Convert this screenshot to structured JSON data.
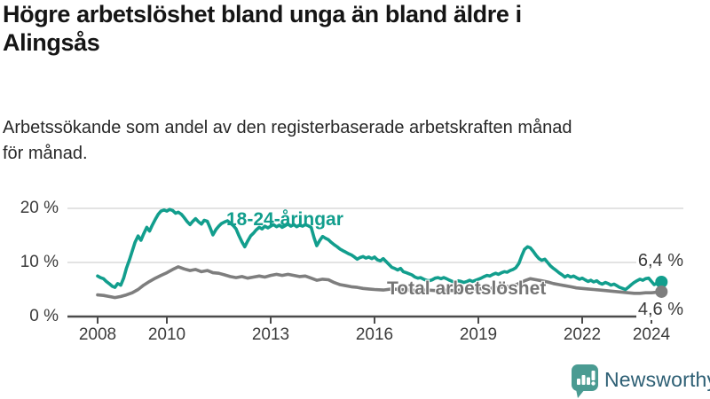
{
  "header": {
    "title_lines": [
      "Högre arbetslöshet bland unga än bland äldre i",
      "Alingsås"
    ],
    "subtitle_lines": [
      "Arbetssökande som andel av den registerbaserade arbetskraften månad",
      "för månad."
    ]
  },
  "chart_data": {
    "type": "line",
    "title": "Högre arbetslöshet bland unga än bland äldre i Alingsås",
    "subtitle": "Arbetssökande som andel av den registerbaserade arbetskraften månad för månad.",
    "grid": true,
    "x_axis": {
      "ticks": [
        2008,
        2010,
        2013,
        2016,
        2019,
        2022,
        2024
      ],
      "tick_labels": [
        "2008",
        "2010",
        "2013",
        "2016",
        "2019",
        "2022",
        "2024"
      ],
      "range": [
        2008,
        2024.4
      ]
    },
    "y_axis": {
      "ticks": [
        0,
        10,
        20
      ],
      "tick_labels": [
        "0 %",
        "10 %",
        "20 %"
      ],
      "range": [
        0,
        21
      ],
      "unit": "%"
    },
    "series": [
      {
        "name": "18-24-åringar",
        "color": "#129e8d",
        "label_color": "#129e8d",
        "end_value": 6.4,
        "end_label": "6,4 %",
        "points": [
          [
            2008.0,
            7.5
          ],
          [
            2008.08,
            7.2
          ],
          [
            2008.17,
            7.0
          ],
          [
            2008.25,
            6.5
          ],
          [
            2008.33,
            6.1
          ],
          [
            2008.42,
            5.6
          ],
          [
            2008.5,
            5.4
          ],
          [
            2008.58,
            6.1
          ],
          [
            2008.67,
            5.8
          ],
          [
            2008.75,
            7.1
          ],
          [
            2008.83,
            8.9
          ],
          [
            2008.92,
            10.5
          ],
          [
            2009.0,
            12.1
          ],
          [
            2009.08,
            13.7
          ],
          [
            2009.17,
            14.9
          ],
          [
            2009.25,
            14.1
          ],
          [
            2009.33,
            15.3
          ],
          [
            2009.42,
            16.5
          ],
          [
            2009.5,
            15.8
          ],
          [
            2009.58,
            16.9
          ],
          [
            2009.67,
            18.0
          ],
          [
            2009.75,
            18.9
          ],
          [
            2009.83,
            19.5
          ],
          [
            2009.92,
            19.7
          ],
          [
            2010.0,
            19.5
          ],
          [
            2010.08,
            19.8
          ],
          [
            2010.17,
            19.6
          ],
          [
            2010.25,
            19.1
          ],
          [
            2010.33,
            19.3
          ],
          [
            2010.42,
            18.9
          ],
          [
            2010.5,
            18.3
          ],
          [
            2010.58,
            17.6
          ],
          [
            2010.67,
            17.0
          ],
          [
            2010.75,
            17.6
          ],
          [
            2010.83,
            18.1
          ],
          [
            2010.92,
            17.5
          ],
          [
            2011.0,
            17.1
          ],
          [
            2011.08,
            17.8
          ],
          [
            2011.17,
            17.6
          ],
          [
            2011.25,
            16.4
          ],
          [
            2011.33,
            15.1
          ],
          [
            2011.42,
            16.1
          ],
          [
            2011.5,
            16.7
          ],
          [
            2011.58,
            17.2
          ],
          [
            2011.67,
            17.5
          ],
          [
            2011.75,
            17.7
          ],
          [
            2011.83,
            17.3
          ],
          [
            2011.92,
            16.8
          ],
          [
            2012.0,
            16.2
          ],
          [
            2012.08,
            15.0
          ],
          [
            2012.17,
            13.8
          ],
          [
            2012.25,
            12.9
          ],
          [
            2012.33,
            13.9
          ],
          [
            2012.42,
            14.9
          ],
          [
            2012.5,
            15.4
          ],
          [
            2012.58,
            16.0
          ],
          [
            2012.67,
            16.5
          ],
          [
            2012.75,
            16.2
          ],
          [
            2012.83,
            16.7
          ],
          [
            2012.92,
            16.4
          ],
          [
            2013.0,
            16.7
          ],
          [
            2013.08,
            17.0
          ],
          [
            2013.17,
            16.6
          ],
          [
            2013.25,
            16.9
          ],
          [
            2013.33,
            16.5
          ],
          [
            2013.42,
            16.8
          ],
          [
            2013.5,
            17.1
          ],
          [
            2013.58,
            16.7
          ],
          [
            2013.67,
            17.0
          ],
          [
            2013.75,
            16.6
          ],
          [
            2013.83,
            16.9
          ],
          [
            2013.92,
            16.7
          ],
          [
            2014.0,
            17.0
          ],
          [
            2014.08,
            16.8
          ],
          [
            2014.17,
            16.5
          ],
          [
            2014.25,
            14.6
          ],
          [
            2014.33,
            13.1
          ],
          [
            2014.42,
            14.1
          ],
          [
            2014.5,
            14.8
          ],
          [
            2014.58,
            14.5
          ],
          [
            2014.67,
            14.2
          ],
          [
            2014.75,
            13.7
          ],
          [
            2014.83,
            13.3
          ],
          [
            2014.92,
            12.9
          ],
          [
            2015.0,
            12.5
          ],
          [
            2015.08,
            12.2
          ],
          [
            2015.17,
            11.9
          ],
          [
            2015.25,
            11.6
          ],
          [
            2015.33,
            11.4
          ],
          [
            2015.42,
            11.0
          ],
          [
            2015.5,
            10.6
          ],
          [
            2015.58,
            10.9
          ],
          [
            2015.67,
            11.1
          ],
          [
            2015.75,
            10.8
          ],
          [
            2015.83,
            11.0
          ],
          [
            2015.92,
            10.7
          ],
          [
            2016.0,
            11.0
          ],
          [
            2016.08,
            10.5
          ],
          [
            2016.17,
            10.3
          ],
          [
            2016.25,
            10.7
          ],
          [
            2016.33,
            10.2
          ],
          [
            2016.42,
            9.6
          ],
          [
            2016.5,
            9.1
          ],
          [
            2016.58,
            8.9
          ],
          [
            2016.67,
            8.6
          ],
          [
            2016.75,
            8.9
          ],
          [
            2016.83,
            8.3
          ],
          [
            2016.92,
            8.1
          ],
          [
            2017.0,
            7.9
          ],
          [
            2017.08,
            7.7
          ],
          [
            2017.17,
            7.3
          ],
          [
            2017.25,
            7.1
          ],
          [
            2017.33,
            7.2
          ],
          [
            2017.42,
            6.9
          ],
          [
            2017.5,
            6.7
          ],
          [
            2017.58,
            6.6
          ],
          [
            2017.67,
            6.8
          ],
          [
            2017.75,
            7.1
          ],
          [
            2017.83,
            7.2
          ],
          [
            2017.92,
            7.0
          ],
          [
            2018.0,
            7.2
          ],
          [
            2018.08,
            7.0
          ],
          [
            2018.17,
            6.7
          ],
          [
            2018.25,
            6.5
          ],
          [
            2018.33,
            6.4
          ],
          [
            2018.42,
            6.6
          ],
          [
            2018.5,
            6.5
          ],
          [
            2018.58,
            6.3
          ],
          [
            2018.67,
            6.5
          ],
          [
            2018.75,
            6.7
          ],
          [
            2018.83,
            6.5
          ],
          [
            2018.92,
            6.7
          ],
          [
            2019.0,
            6.9
          ],
          [
            2019.08,
            7.1
          ],
          [
            2019.17,
            7.4
          ],
          [
            2019.25,
            7.6
          ],
          [
            2019.33,
            7.5
          ],
          [
            2019.42,
            7.8
          ],
          [
            2019.5,
            8.0
          ],
          [
            2019.58,
            7.8
          ],
          [
            2019.67,
            8.1
          ],
          [
            2019.75,
            8.3
          ],
          [
            2019.83,
            8.2
          ],
          [
            2019.92,
            8.5
          ],
          [
            2020.0,
            8.7
          ],
          [
            2020.08,
            9.0
          ],
          [
            2020.17,
            9.8
          ],
          [
            2020.25,
            11.2
          ],
          [
            2020.33,
            12.4
          ],
          [
            2020.42,
            12.9
          ],
          [
            2020.5,
            12.7
          ],
          [
            2020.58,
            12.1
          ],
          [
            2020.67,
            11.3
          ],
          [
            2020.75,
            10.7
          ],
          [
            2020.83,
            10.4
          ],
          [
            2020.92,
            10.6
          ],
          [
            2021.0,
            10.0
          ],
          [
            2021.08,
            9.4
          ],
          [
            2021.17,
            8.9
          ],
          [
            2021.25,
            8.5
          ],
          [
            2021.33,
            8.1
          ],
          [
            2021.42,
            7.7
          ],
          [
            2021.5,
            7.3
          ],
          [
            2021.58,
            7.6
          ],
          [
            2021.67,
            7.3
          ],
          [
            2021.75,
            7.5
          ],
          [
            2021.83,
            7.2
          ],
          [
            2021.92,
            6.9
          ],
          [
            2022.0,
            7.1
          ],
          [
            2022.08,
            6.8
          ],
          [
            2022.17,
            6.5
          ],
          [
            2022.25,
            6.7
          ],
          [
            2022.33,
            6.4
          ],
          [
            2022.42,
            6.6
          ],
          [
            2022.5,
            6.2
          ],
          [
            2022.58,
            6.0
          ],
          [
            2022.67,
            6.3
          ],
          [
            2022.75,
            6.1
          ],
          [
            2022.83,
            5.8
          ],
          [
            2022.92,
            6.0
          ],
          [
            2023.0,
            5.7
          ],
          [
            2023.08,
            5.4
          ],
          [
            2023.17,
            5.2
          ],
          [
            2023.25,
            5.0
          ],
          [
            2023.33,
            5.4
          ],
          [
            2023.42,
            5.9
          ],
          [
            2023.5,
            6.3
          ],
          [
            2023.58,
            6.6
          ],
          [
            2023.67,
            6.9
          ],
          [
            2023.75,
            6.7
          ],
          [
            2023.83,
            7.0
          ],
          [
            2023.92,
            7.1
          ],
          [
            2024.0,
            6.5
          ],
          [
            2024.08,
            5.9
          ],
          [
            2024.17,
            6.2
          ],
          [
            2024.29,
            6.4
          ]
        ]
      },
      {
        "name": "Total arbetslöshet",
        "color": "#7e7e7e",
        "label_color": "#757575",
        "end_value": 4.6,
        "end_label": "4,6 %",
        "points": [
          [
            2008.0,
            4.0
          ],
          [
            2008.17,
            3.9
          ],
          [
            2008.33,
            3.7
          ],
          [
            2008.5,
            3.5
          ],
          [
            2008.67,
            3.7
          ],
          [
            2008.83,
            4.0
          ],
          [
            2009.0,
            4.4
          ],
          [
            2009.17,
            5.0
          ],
          [
            2009.33,
            5.8
          ],
          [
            2009.5,
            6.5
          ],
          [
            2009.67,
            7.1
          ],
          [
            2009.83,
            7.6
          ],
          [
            2010.0,
            8.1
          ],
          [
            2010.17,
            8.7
          ],
          [
            2010.33,
            9.2
          ],
          [
            2010.5,
            8.8
          ],
          [
            2010.67,
            8.5
          ],
          [
            2010.83,
            8.7
          ],
          [
            2011.0,
            8.3
          ],
          [
            2011.17,
            8.5
          ],
          [
            2011.33,
            8.1
          ],
          [
            2011.5,
            8.0
          ],
          [
            2011.67,
            7.7
          ],
          [
            2011.83,
            7.4
          ],
          [
            2012.0,
            7.2
          ],
          [
            2012.17,
            7.4
          ],
          [
            2012.33,
            7.1
          ],
          [
            2012.5,
            7.3
          ],
          [
            2012.67,
            7.5
          ],
          [
            2012.83,
            7.3
          ],
          [
            2013.0,
            7.6
          ],
          [
            2013.17,
            7.8
          ],
          [
            2013.33,
            7.6
          ],
          [
            2013.5,
            7.8
          ],
          [
            2013.67,
            7.6
          ],
          [
            2013.83,
            7.4
          ],
          [
            2014.0,
            7.5
          ],
          [
            2014.17,
            7.1
          ],
          [
            2014.33,
            6.7
          ],
          [
            2014.5,
            6.9
          ],
          [
            2014.67,
            6.8
          ],
          [
            2014.83,
            6.3
          ],
          [
            2015.0,
            5.9
          ],
          [
            2015.17,
            5.7
          ],
          [
            2015.33,
            5.5
          ],
          [
            2015.5,
            5.4
          ],
          [
            2015.67,
            5.2
          ],
          [
            2015.83,
            5.1
          ],
          [
            2016.0,
            5.0
          ],
          [
            2016.25,
            4.9
          ],
          [
            2016.5,
            5.1
          ],
          [
            2016.75,
            5.0
          ],
          [
            2017.0,
            4.9
          ],
          [
            2017.25,
            4.8
          ],
          [
            2017.5,
            4.9
          ],
          [
            2017.75,
            4.8
          ],
          [
            2018.0,
            4.9
          ],
          [
            2018.25,
            4.8
          ],
          [
            2018.5,
            4.9
          ],
          [
            2018.75,
            5.0
          ],
          [
            2019.0,
            5.1
          ],
          [
            2019.25,
            5.2
          ],
          [
            2019.5,
            5.3
          ],
          [
            2019.75,
            5.5
          ],
          [
            2020.0,
            5.7
          ],
          [
            2020.17,
            6.1
          ],
          [
            2020.33,
            6.6
          ],
          [
            2020.5,
            7.0
          ],
          [
            2020.67,
            6.8
          ],
          [
            2020.83,
            6.6
          ],
          [
            2021.0,
            6.4
          ],
          [
            2021.17,
            6.1
          ],
          [
            2021.33,
            5.9
          ],
          [
            2021.5,
            5.7
          ],
          [
            2021.67,
            5.5
          ],
          [
            2021.83,
            5.3
          ],
          [
            2022.0,
            5.2
          ],
          [
            2022.17,
            5.1
          ],
          [
            2022.33,
            5.0
          ],
          [
            2022.5,
            4.9
          ],
          [
            2022.67,
            4.8
          ],
          [
            2022.83,
            4.7
          ],
          [
            2023.0,
            4.6
          ],
          [
            2023.17,
            4.5
          ],
          [
            2023.33,
            4.4
          ],
          [
            2023.5,
            4.3
          ],
          [
            2023.67,
            4.3
          ],
          [
            2023.83,
            4.4
          ],
          [
            2024.0,
            4.4
          ],
          [
            2024.17,
            4.5
          ],
          [
            2024.29,
            4.6
          ]
        ]
      }
    ],
    "colors": {
      "grid": "#dadada",
      "axis": "#4b4b4b",
      "axis_text": "#3c3c3c"
    }
  },
  "footer": {
    "brand": "Newsworthy",
    "logo_color": "#4a9b92",
    "brand_text_color": "#2d5f74"
  }
}
